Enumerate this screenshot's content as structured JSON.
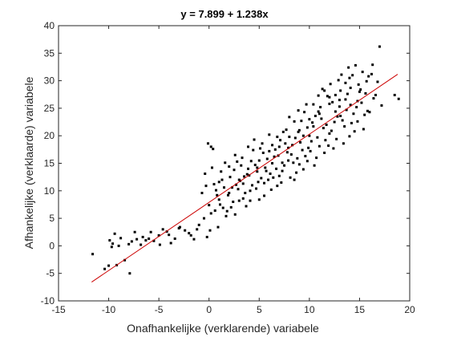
{
  "chart_data": {
    "type": "scatter",
    "title": "y = 7.899 + 1.238x",
    "xlabel": "Onafhankelijke (verklarende) variabele",
    "ylabel": "Afhankelijke (verklaarde) variabele",
    "xlim": [
      -15,
      20
    ],
    "ylim": [
      -10,
      40
    ],
    "xticks": [
      -15,
      -10,
      -5,
      0,
      5,
      10,
      15,
      20
    ],
    "yticks": [
      -10,
      -5,
      0,
      5,
      10,
      15,
      20,
      25,
      30,
      35,
      40
    ],
    "grid": false,
    "regression": {
      "intercept": 7.899,
      "slope": 1.238,
      "x_range": [
        -11.7,
        18.8
      ],
      "color": "#cc0000"
    },
    "marker_color": "#000000",
    "points": [
      [
        -11.6,
        -1.5
      ],
      [
        -10.4,
        -4.2
      ],
      [
        -10.0,
        -3.6
      ],
      [
        -9.9,
        1.0
      ],
      [
        -9.6,
        0.4
      ],
      [
        -9.4,
        2.2
      ],
      [
        -9.2,
        -3.5
      ],
      [
        -9.0,
        0.0
      ],
      [
        -8.8,
        1.4
      ],
      [
        -8.4,
        -2.6
      ],
      [
        -8.0,
        0.3
      ],
      [
        -7.7,
        0.8
      ],
      [
        -7.4,
        2.5
      ],
      [
        -7.2,
        1.2
      ],
      [
        -6.8,
        0.2
      ],
      [
        -6.3,
        1.0
      ],
      [
        -6.0,
        1.3
      ],
      [
        -5.5,
        0.9
      ],
      [
        -5.0,
        1.9
      ],
      [
        -4.6,
        3.0
      ],
      [
        -4.2,
        2.6
      ],
      [
        -3.8,
        0.5
      ],
      [
        -3.4,
        1.3
      ],
      [
        -2.9,
        3.4
      ],
      [
        -2.4,
        2.8
      ],
      [
        -1.8,
        1.9
      ],
      [
        -1.5,
        1.2
      ],
      [
        -1.0,
        3.8
      ],
      [
        -0.7,
        9.6
      ],
      [
        -0.4,
        13.1
      ],
      [
        -0.1,
        18.6
      ],
      [
        0.2,
        5.9
      ],
      [
        0.5,
        11.2
      ],
      [
        0.8,
        9.2
      ],
      [
        1.1,
        7.5
      ],
      [
        1.5,
        10.6
      ],
      [
        1.8,
        6.3
      ],
      [
        2.1,
        12.5
      ],
      [
        2.4,
        8.0
      ],
      [
        2.8,
        15.3
      ],
      [
        3.1,
        11.8
      ],
      [
        3.4,
        8.6
      ],
      [
        3.8,
        13.0
      ],
      [
        4.1,
        10.0
      ],
      [
        4.4,
        17.4
      ],
      [
        4.8,
        14.2
      ],
      [
        5.2,
        12.3
      ],
      [
        5.5,
        9.1
      ],
      [
        5.8,
        15.8
      ],
      [
        6.1,
        13.1
      ],
      [
        6.5,
        16.2
      ],
      [
        6.8,
        10.9
      ],
      [
        7.1,
        19.2
      ],
      [
        7.5,
        14.6
      ],
      [
        7.8,
        17.0
      ],
      [
        8.1,
        12.4
      ],
      [
        8.5,
        22.6
      ],
      [
        8.8,
        15.9
      ],
      [
        9.1,
        18.8
      ],
      [
        9.4,
        13.9
      ],
      [
        9.8,
        21.5
      ],
      [
        10.1,
        17.2
      ],
      [
        10.4,
        25.7
      ],
      [
        10.8,
        19.7
      ],
      [
        11.2,
        23.1
      ],
      [
        11.5,
        16.9
      ],
      [
        11.8,
        27.2
      ],
      [
        12.2,
        20.9
      ],
      [
        12.6,
        24.4
      ],
      [
        12.9,
        30.1
      ],
      [
        13.3,
        22.8
      ],
      [
        13.6,
        26.6
      ],
      [
        14.0,
        19.9
      ],
      [
        14.3,
        31.0
      ],
      [
        14.7,
        25.2
      ],
      [
        15.1,
        28.4
      ],
      [
        15.5,
        23.8
      ],
      [
        15.9,
        30.8
      ],
      [
        16.4,
        26.8
      ],
      [
        17.0,
        36.2
      ],
      [
        18.5,
        27.4
      ],
      [
        18.9,
        26.7
      ],
      [
        -5.8,
        2.5
      ],
      [
        -3.0,
        3.2
      ],
      [
        0.0,
        7.4
      ],
      [
        0.3,
        14.2
      ],
      [
        0.9,
        3.4
      ],
      [
        1.3,
        12.0
      ],
      [
        1.7,
        5.4
      ],
      [
        2.0,
        9.6
      ],
      [
        2.5,
        13.8
      ],
      [
        2.9,
        10.3
      ],
      [
        3.3,
        16.0
      ],
      [
        3.7,
        7.2
      ],
      [
        4.0,
        12.8
      ],
      [
        4.5,
        19.3
      ],
      [
        4.9,
        11.6
      ],
      [
        5.4,
        16.9
      ],
      [
        5.9,
        12.0
      ],
      [
        6.3,
        18.3
      ],
      [
        6.7,
        14.0
      ],
      [
        7.0,
        12.7
      ],
      [
        7.4,
        20.7
      ],
      [
        7.9,
        15.5
      ],
      [
        8.3,
        18.3
      ],
      [
        8.7,
        13.3
      ],
      [
        9.2,
        22.7
      ],
      [
        9.6,
        16.3
      ],
      [
        10.0,
        20.0
      ],
      [
        10.5,
        14.6
      ],
      [
        10.9,
        27.3
      ],
      [
        11.4,
        21.4
      ],
      [
        11.9,
        18.2
      ],
      [
        12.3,
        26.1
      ],
      [
        12.7,
        19.4
      ],
      [
        13.1,
        28.2
      ],
      [
        13.5,
        21.7
      ],
      [
        13.9,
        32.4
      ],
      [
        14.4,
        24.0
      ],
      [
        14.9,
        29.3
      ],
      [
        15.4,
        21.2
      ],
      [
        16.2,
        31.2
      ],
      [
        17.2,
        25.5
      ],
      [
        -0.5,
        5.0
      ],
      [
        -0.2,
        1.6
      ],
      [
        0.4,
        17.6
      ],
      [
        1.0,
        8.4
      ],
      [
        1.6,
        15.1
      ],
      [
        2.2,
        7.0
      ],
      [
        2.7,
        11.1
      ],
      [
        3.2,
        14.6
      ],
      [
        3.6,
        9.6
      ],
      [
        4.2,
        15.4
      ],
      [
        4.7,
        10.4
      ],
      [
        5.3,
        18.6
      ],
      [
        5.7,
        13.6
      ],
      [
        6.2,
        10.2
      ],
      [
        6.6,
        17.5
      ],
      [
        7.3,
        15.1
      ],
      [
        7.7,
        21.1
      ],
      [
        8.2,
        16.6
      ],
      [
        8.6,
        19.6
      ],
      [
        9.0,
        14.8
      ],
      [
        9.5,
        24.3
      ],
      [
        9.9,
        17.8
      ],
      [
        10.3,
        22.4
      ],
      [
        10.7,
        16.0
      ],
      [
        11.1,
        25.2
      ],
      [
        11.6,
        19.2
      ],
      [
        12.1,
        29.4
      ],
      [
        12.5,
        22.5
      ],
      [
        13.0,
        25.3
      ],
      [
        13.4,
        18.6
      ],
      [
        13.8,
        27.6
      ],
      [
        14.2,
        22.3
      ],
      [
        14.6,
        32.8
      ],
      [
        15.2,
        26.0
      ],
      [
        15.7,
        29.9
      ],
      [
        16.6,
        27.4
      ],
      [
        -0.3,
        10.9
      ],
      [
        0.6,
        6.4
      ],
      [
        1.2,
        13.5
      ],
      [
        1.9,
        9.2
      ],
      [
        2.6,
        16.5
      ],
      [
        3.0,
        8.2
      ],
      [
        3.5,
        12.6
      ],
      [
        3.9,
        18.0
      ],
      [
        4.3,
        11.0
      ],
      [
        4.6,
        14.7
      ],
      [
        5.0,
        8.4
      ],
      [
        5.6,
        14.2
      ],
      [
        6.0,
        20.2
      ],
      [
        6.4,
        12.4
      ],
      [
        6.9,
        16.4
      ],
      [
        7.2,
        11.5
      ],
      [
        7.6,
        18.6
      ],
      [
        8.0,
        23.4
      ],
      [
        8.4,
        15.1
      ],
      [
        8.9,
        20.7
      ],
      [
        9.3,
        17.4
      ],
      [
        9.7,
        25.7
      ],
      [
        10.2,
        19.0
      ],
      [
        10.6,
        23.6
      ],
      [
        11.0,
        18.1
      ],
      [
        11.3,
        28.5
      ],
      [
        11.7,
        22.0
      ],
      [
        12.0,
        25.8
      ],
      [
        12.4,
        17.7
      ],
      [
        12.8,
        23.5
      ],
      [
        13.2,
        31.1
      ],
      [
        13.7,
        24.7
      ],
      [
        14.1,
        28.7
      ],
      [
        14.5,
        20.8
      ],
      [
        14.8,
        26.3
      ],
      [
        15.3,
        31.6
      ],
      [
        15.8,
        24.5
      ],
      [
        16.8,
        29.8
      ],
      [
        -9.7,
        -0.2
      ],
      [
        -7.9,
        -5.0
      ],
      [
        -6.6,
        1.6
      ],
      [
        -4.9,
        0.2
      ],
      [
        -4.0,
        2.0
      ],
      [
        -2.0,
        2.3
      ],
      [
        -1.2,
        3.0
      ],
      [
        0.1,
        2.8
      ],
      [
        0.7,
        10.1
      ],
      [
        1.4,
        6.9
      ],
      [
        2.3,
        10.6
      ],
      [
        2.6,
        5.7
      ],
      [
        3.4,
        11.3
      ],
      [
        4.1,
        8.2
      ],
      [
        4.8,
        13.5
      ],
      [
        5.1,
        17.7
      ],
      [
        5.5,
        11.4
      ],
      [
        6.3,
        15.0
      ],
      [
        6.8,
        19.8
      ],
      [
        7.3,
        13.6
      ],
      [
        7.9,
        17.8
      ],
      [
        8.5,
        12.0
      ],
      [
        8.9,
        24.6
      ],
      [
        9.4,
        20.0
      ],
      [
        9.8,
        15.4
      ],
      [
        10.4,
        21.7
      ],
      [
        10.9,
        24.4
      ],
      [
        11.5,
        28.2
      ],
      [
        12.0,
        20.4
      ],
      [
        12.6,
        27.4
      ],
      [
        13.1,
        23.6
      ],
      [
        13.6,
        29.6
      ],
      [
        14.1,
        25.6
      ],
      [
        14.8,
        22.6
      ],
      [
        15.6,
        27.7
      ],
      [
        16.0,
        24.3
      ],
      [
        0.2,
        18.0
      ],
      [
        1.0,
        11.6
      ],
      [
        2.0,
        14.4
      ],
      [
        3.0,
        12.0
      ],
      [
        3.9,
        14.0
      ],
      [
        5.0,
        15.5
      ],
      [
        6.0,
        17.2
      ],
      [
        7.0,
        18.0
      ],
      [
        8.0,
        19.8
      ],
      [
        9.0,
        21.0
      ],
      [
        10.0,
        23.0
      ],
      [
        11.0,
        24.0
      ],
      [
        12.0,
        27.0
      ],
      [
        13.0,
        26.5
      ],
      [
        14.0,
        30.5
      ],
      [
        15.0,
        28.0
      ],
      [
        16.3,
        32.9
      ]
    ]
  }
}
